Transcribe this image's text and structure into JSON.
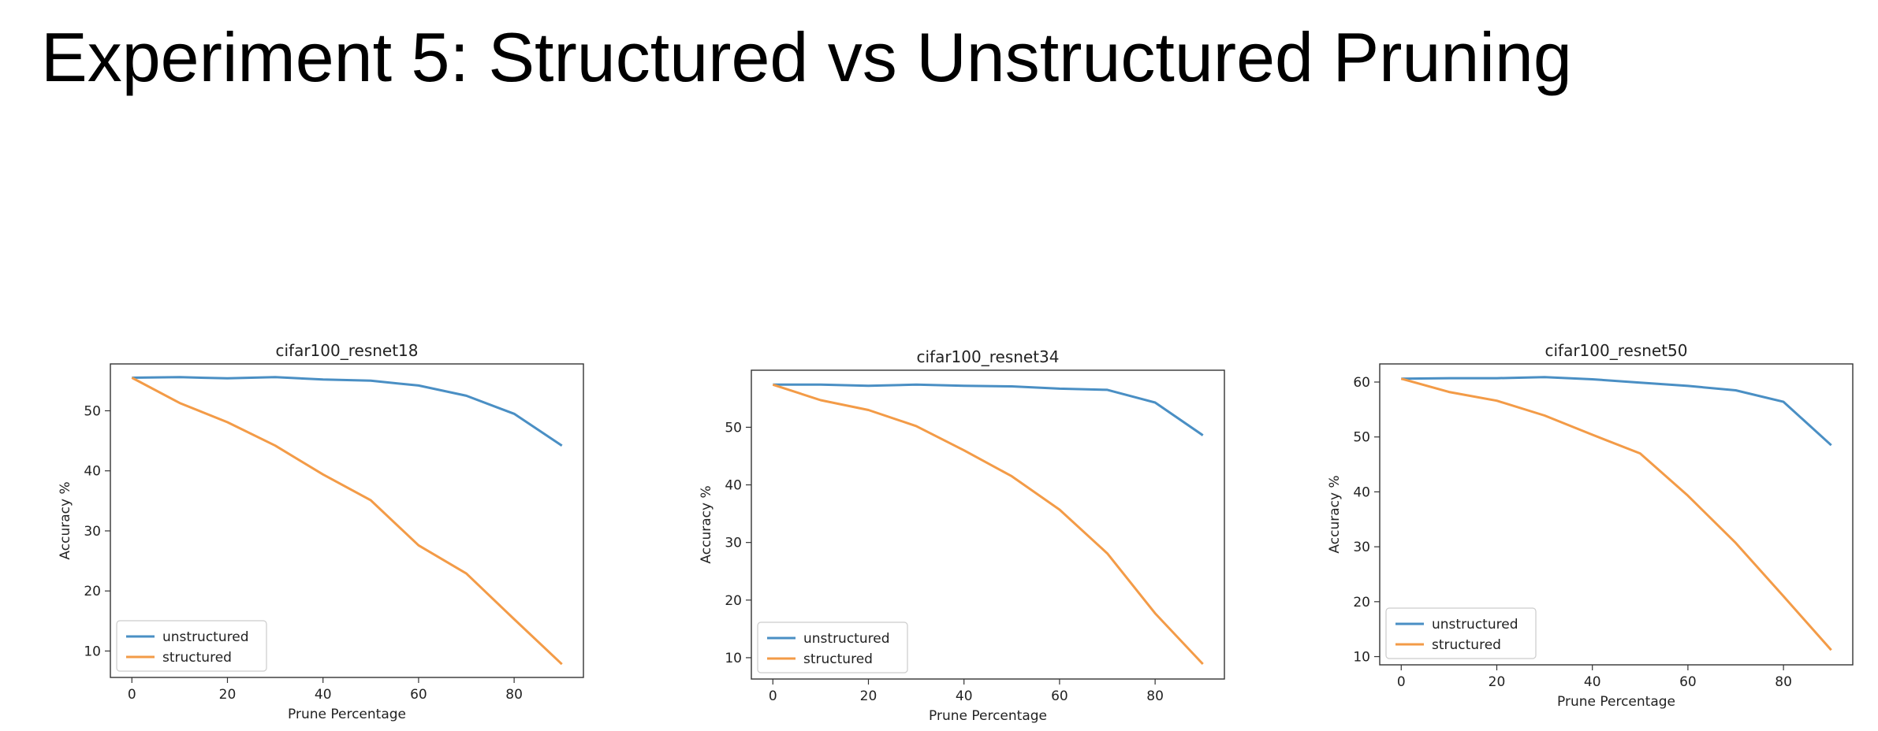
{
  "slide": {
    "title": "Experiment 5: Structured vs Unstructured Pruning"
  },
  "colors": {
    "unstructured": "#4a8fc4",
    "structured": "#f39b47"
  },
  "chart_data": [
    {
      "type": "line",
      "title": "cifar100_resnet18",
      "xlabel": "Prune Percentage",
      "ylabel": "Accuracy %",
      "x": [
        0,
        10,
        20,
        30,
        40,
        50,
        60,
        70,
        80,
        90
      ],
      "xlim": [
        -4.5,
        94.5
      ],
      "ylim": [
        5.6,
        57.8
      ],
      "xticks": [
        0,
        20,
        40,
        60,
        80
      ],
      "yticks": [
        10,
        20,
        30,
        40,
        50
      ],
      "legend": "lower-left",
      "grid": false,
      "series": [
        {
          "name": "unstructured",
          "color": "#4a8fc4",
          "values": [
            55.5,
            55.6,
            55.4,
            55.6,
            55.2,
            55.0,
            54.2,
            52.5,
            49.5,
            44.2
          ]
        },
        {
          "name": "structured",
          "color": "#f39b47",
          "values": [
            55.5,
            51.3,
            48.1,
            44.2,
            39.4,
            35.1,
            27.6,
            22.9,
            15.3,
            7.8
          ]
        }
      ]
    },
    {
      "type": "line",
      "title": "cifar100_resnet34",
      "xlabel": "Prune Percentage",
      "ylabel": "Accuracy %",
      "x": [
        0,
        10,
        20,
        30,
        40,
        50,
        60,
        70,
        80,
        90
      ],
      "xlim": [
        -4.5,
        94.5
      ],
      "ylim": [
        6.3,
        59.9
      ],
      "xticks": [
        0,
        20,
        40,
        60,
        80
      ],
      "yticks": [
        10,
        20,
        30,
        40,
        50
      ],
      "legend": "lower-left",
      "grid": false,
      "series": [
        {
          "name": "unstructured",
          "color": "#4a8fc4",
          "values": [
            57.4,
            57.4,
            57.2,
            57.4,
            57.2,
            57.1,
            56.7,
            56.5,
            54.3,
            48.6
          ]
        },
        {
          "name": "structured",
          "color": "#f39b47",
          "values": [
            57.4,
            54.7,
            53.0,
            50.2,
            46.0,
            41.5,
            35.7,
            28.1,
            17.7,
            8.9
          ]
        }
      ]
    },
    {
      "type": "line",
      "title": "cifar100_resnet50",
      "xlabel": "Prune Percentage",
      "ylabel": "Accuracy %",
      "x": [
        0,
        10,
        20,
        30,
        40,
        50,
        60,
        70,
        80,
        90
      ],
      "xlim": [
        -4.5,
        94.5
      ],
      "ylim": [
        8.5,
        63.3
      ],
      "xticks": [
        0,
        20,
        40,
        60,
        80
      ],
      "yticks": [
        10,
        20,
        30,
        40,
        50,
        60
      ],
      "legend": "lower-left",
      "grid": false,
      "series": [
        {
          "name": "unstructured",
          "color": "#4a8fc4",
          "values": [
            60.6,
            60.7,
            60.7,
            60.9,
            60.5,
            59.9,
            59.3,
            58.5,
            56.4,
            48.5
          ]
        },
        {
          "name": "structured",
          "color": "#f39b47",
          "values": [
            60.6,
            58.2,
            56.6,
            53.9,
            50.4,
            47.0,
            39.3,
            30.7,
            21.0,
            11.2
          ]
        }
      ]
    }
  ]
}
